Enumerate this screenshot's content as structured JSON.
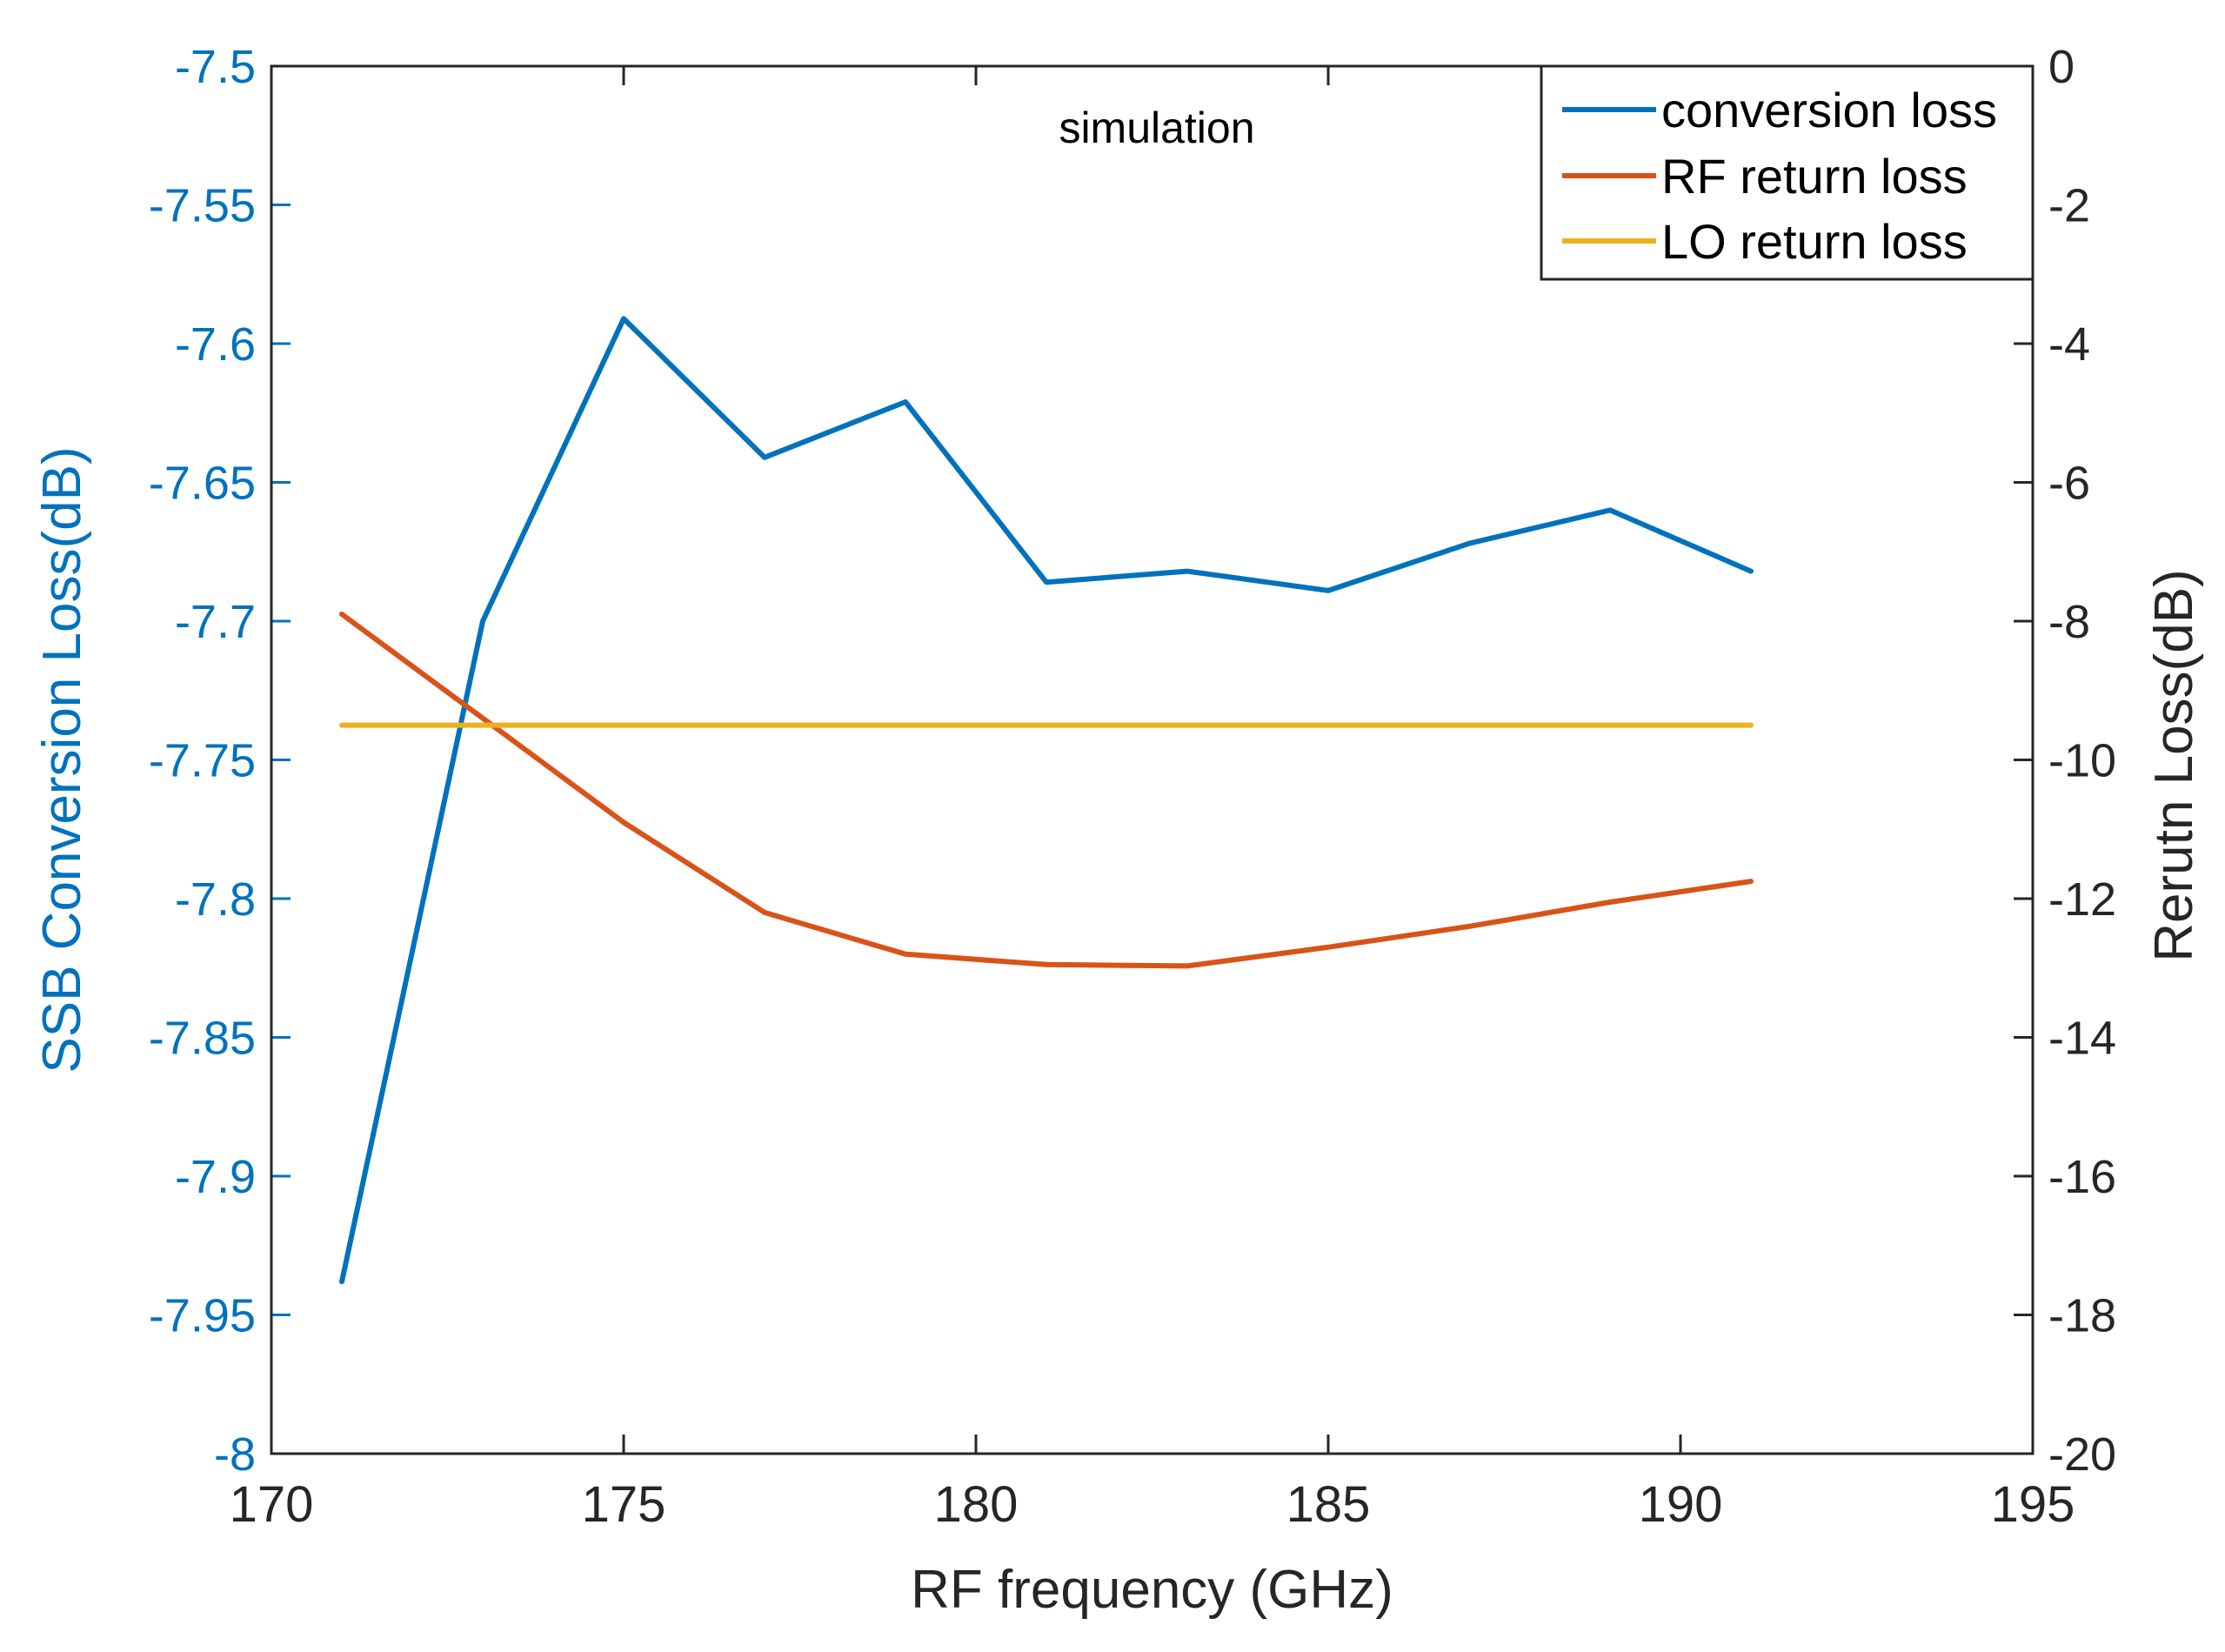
{
  "chart_data": {
    "type": "line",
    "annotation": "simulation",
    "xlabel": "RF frequency (GHz)",
    "ylabel_left": "SSB Conversion Loss(dB)",
    "ylabel_right": "Rerutn Loss(dB)",
    "xlim": [
      170,
      195
    ],
    "ylim_left": [
      -8,
      -7.5
    ],
    "ylim_right": [
      -20,
      0
    ],
    "x_ticks": [
      "170",
      "175",
      "180",
      "185",
      "190",
      "195"
    ],
    "y_left_ticks": [
      "-7.5",
      "-7.55",
      "-7.6",
      "-7.65",
      "-7.7",
      "-7.75",
      "-7.8",
      "-7.85",
      "-7.9",
      "-7.95",
      "-8"
    ],
    "y_right_ticks": [
      "0",
      "-2",
      "-4",
      "-6",
      "-8",
      "-10",
      "-12",
      "-14",
      "-16",
      "-18",
      "-20"
    ],
    "legend_position": "top-right",
    "series": [
      {
        "name": "conversion loss",
        "axis": "left",
        "color": "#0072BD",
        "x": [
          171,
          173,
          175,
          177,
          179,
          181,
          183,
          185,
          187,
          189,
          191
        ],
        "values": [
          -7.938,
          -7.7,
          -7.591,
          -7.641,
          -7.621,
          -7.686,
          -7.682,
          -7.689,
          -7.672,
          -7.66,
          -7.682
        ]
      },
      {
        "name": "RF return loss",
        "axis": "right",
        "color": "#D95319",
        "x": [
          171,
          173,
          175,
          177,
          179,
          181,
          183,
          185,
          187,
          189,
          191
        ],
        "values": [
          -7.9,
          -9.4,
          -10.9,
          -12.2,
          -12.8,
          -12.95,
          -12.97,
          -12.7,
          -12.4,
          -12.05,
          -11.75
        ]
      },
      {
        "name": "LO return loss",
        "axis": "right",
        "color": "#EDB120",
        "x": [
          171,
          173,
          175,
          177,
          179,
          181,
          183,
          185,
          187,
          189,
          191
        ],
        "values": [
          -9.5,
          -9.5,
          -9.5,
          -9.5,
          -9.5,
          -9.5,
          -9.5,
          -9.5,
          -9.5,
          -9.5,
          -9.5
        ]
      }
    ]
  }
}
